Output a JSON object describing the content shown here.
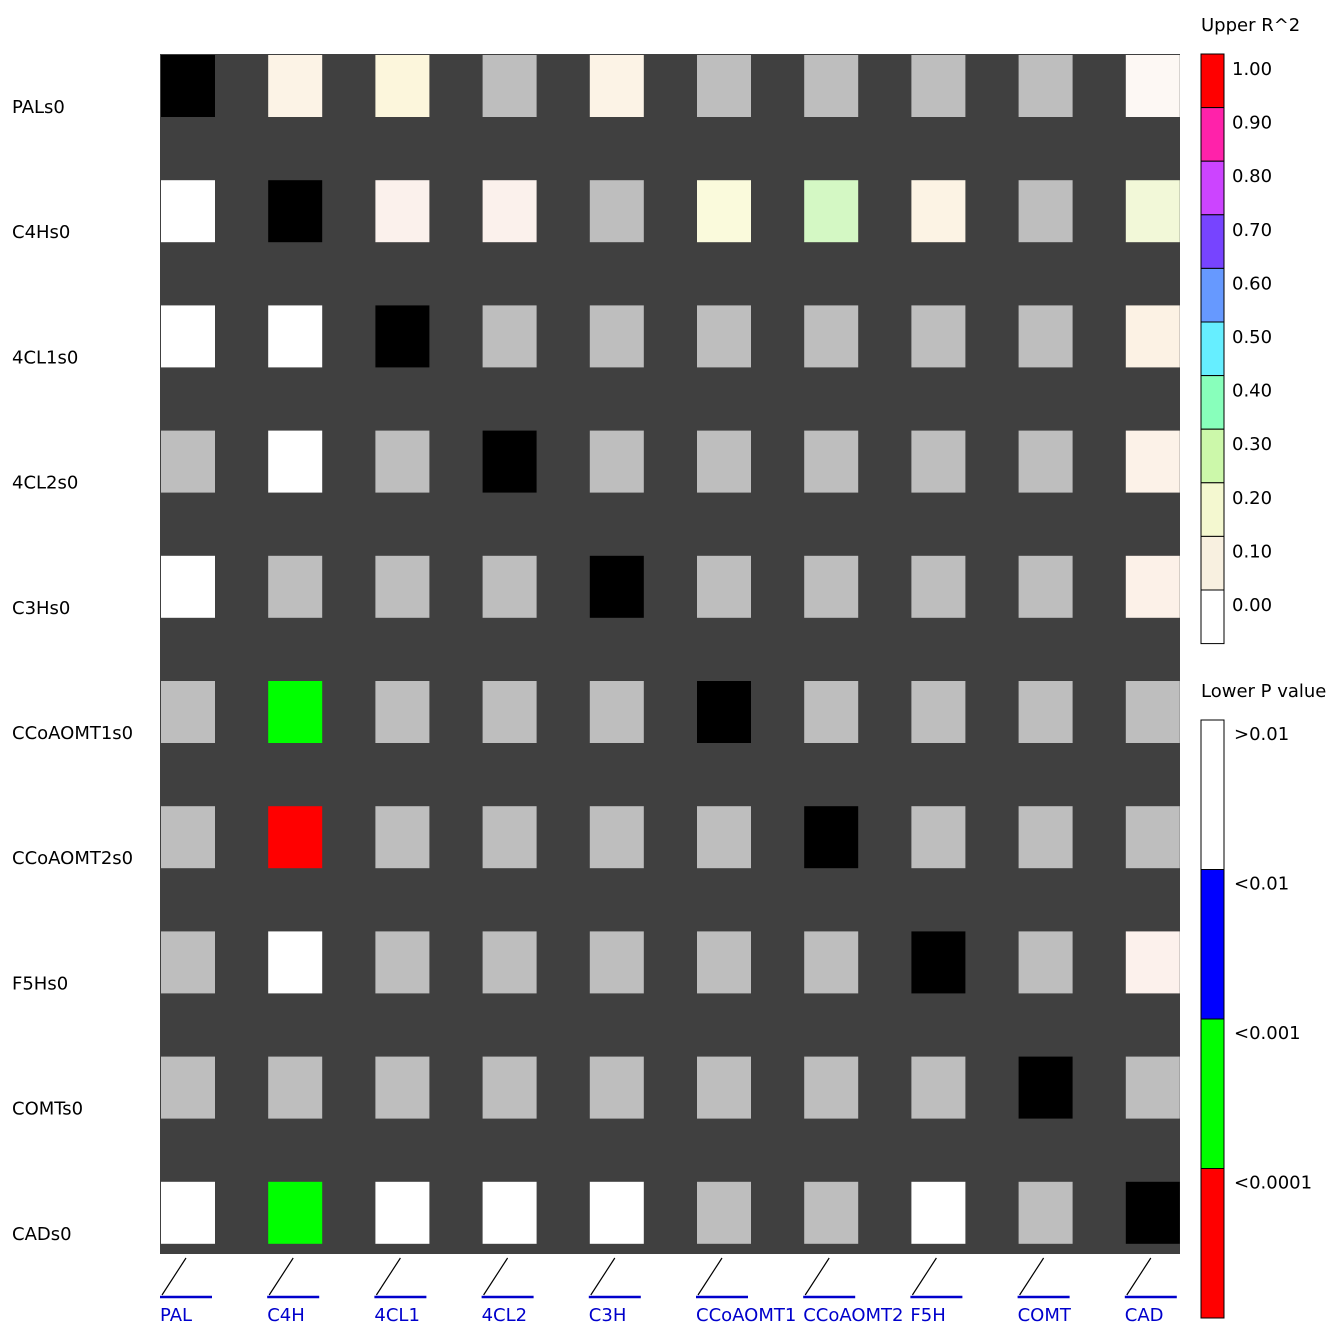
{
  "chart_data": {
    "type": "heatmap",
    "rows": [
      "PALs0",
      "C4Hs0",
      "4CL1s0",
      "4CL2s0",
      "C3Hs0",
      "CCoAOMT1s0",
      "CCoAOMT2s0",
      "F5Hs0",
      "COMTs0",
      "CADs0"
    ],
    "columns": [
      "PAL",
      "C4H",
      "4CL1",
      "4CL2",
      "C3H",
      "CCoAOMT1",
      "CCoAOMT2",
      "F5H",
      "COMT",
      "CAD"
    ],
    "cell_colors": [
      [
        "#000000",
        "#fcf3e6",
        "#fcf6dc",
        "#bebebe",
        "#fcf3e6",
        "#bebebe",
        "#bebebe",
        "#bebebe",
        "#bebebe",
        "#fdf8f4"
      ],
      [
        "#ffffff",
        "#000000",
        "#fbf1ec",
        "#fbf1ec",
        "#bebebe",
        "#fafadc",
        "#d4f8c4",
        "#fcf3e4",
        "#bebebe",
        "#f2f8d8"
      ],
      [
        "#ffffff",
        "#ffffff",
        "#000000",
        "#bebebe",
        "#bebebe",
        "#bebebe",
        "#bebebe",
        "#bebebe",
        "#bebebe",
        "#fcf2e4"
      ],
      [
        "#bebebe",
        "#ffffff",
        "#bebebe",
        "#000000",
        "#bebebe",
        "#bebebe",
        "#bebebe",
        "#bebebe",
        "#bebebe",
        "#fcf2e8"
      ],
      [
        "#ffffff",
        "#bebebe",
        "#bebebe",
        "#bebebe",
        "#000000",
        "#bebebe",
        "#bebebe",
        "#bebebe",
        "#bebebe",
        "#fcf1e8"
      ],
      [
        "#bebebe",
        "#00ff00",
        "#bebebe",
        "#bebebe",
        "#bebebe",
        "#000000",
        "#bebebe",
        "#bebebe",
        "#bebebe",
        "#bebebe"
      ],
      [
        "#bebebe",
        "#ff0000",
        "#bebebe",
        "#bebebe",
        "#bebebe",
        "#bebebe",
        "#000000",
        "#bebebe",
        "#bebebe",
        "#bebebe"
      ],
      [
        "#bebebe",
        "#ffffff",
        "#bebebe",
        "#bebebe",
        "#bebebe",
        "#bebebe",
        "#bebebe",
        "#000000",
        "#bebebe",
        "#fcf1ec"
      ],
      [
        "#bebebe",
        "#bebebe",
        "#bebebe",
        "#bebebe",
        "#bebebe",
        "#bebebe",
        "#bebebe",
        "#bebebe",
        "#000000",
        "#bebebe"
      ],
      [
        "#ffffff",
        "#00ff00",
        "#ffffff",
        "#ffffff",
        "#ffffff",
        "#bebebe",
        "#bebebe",
        "#ffffff",
        "#bebebe",
        "#000000"
      ]
    ],
    "background_color": "#404040",
    "legend_upper": {
      "title": "Upper R^2",
      "ticks": [
        "1.00",
        "0.90",
        "0.80",
        "0.70",
        "0.60",
        "0.50",
        "0.40",
        "0.30",
        "0.20",
        "0.10",
        "0.00"
      ],
      "colors": [
        "#ff0000",
        "#ff22aa",
        "#cc44ff",
        "#7744ff",
        "#6699ff",
        "#66eeff",
        "#88ffbb",
        "#ccf8aa",
        "#f4f8d0",
        "#f8f0e0",
        "#ffffff"
      ]
    },
    "legend_lower": {
      "title": "Lower P value",
      "labels": [
        ">0.01",
        "<0.01",
        "<0.001",
        "<0.0001"
      ],
      "colors": [
        "#ffffff",
        "#0000ff",
        "#00ff00",
        "#ff0000"
      ]
    }
  }
}
